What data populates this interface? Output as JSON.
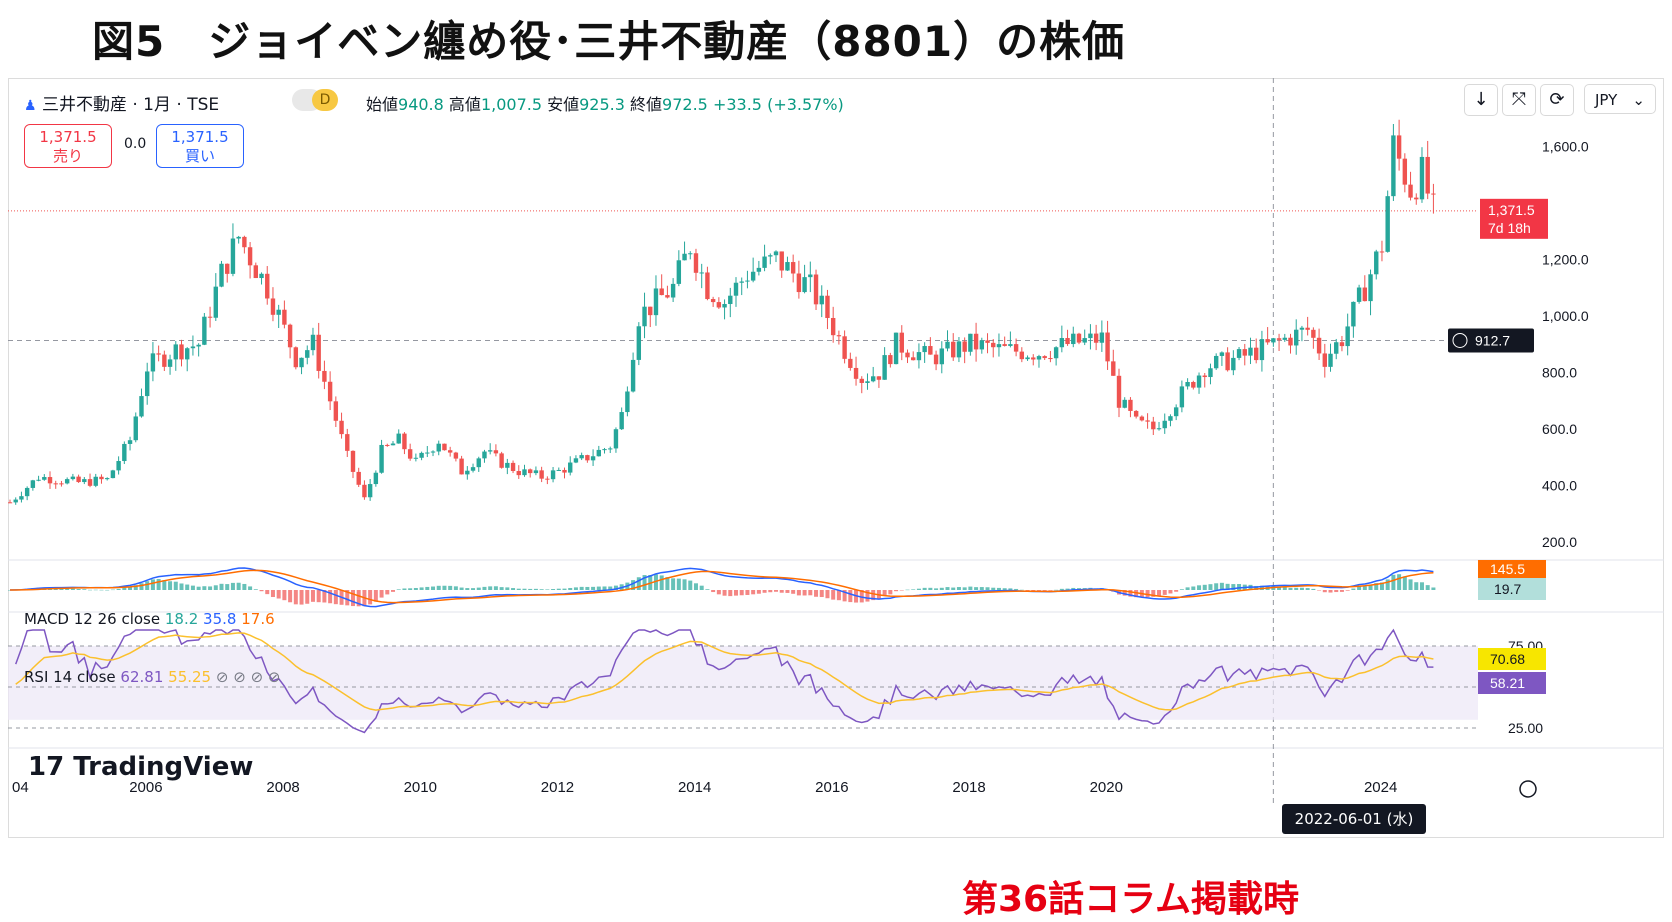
{
  "figure_title": "図5　ジョイベン纏め役･三井不動産（8801）の株価",
  "symbol_line": "三井不動産 · 1月 · TSE",
  "interval_badge": "D",
  "ohlc": {
    "open_label": "始値",
    "open": "940.8",
    "high_label": "高値",
    "high": "1,007.5",
    "low_label": "安値",
    "low": "925.3",
    "close_label": "終値",
    "close": "972.5",
    "change": "+33.5 (+3.57%)"
  },
  "sell": {
    "price": "1,371.5",
    "label": "売り"
  },
  "buy": {
    "price": "1,371.5",
    "label": "買い"
  },
  "spread": "0.0",
  "toolbar": {
    "download_icon": "↓",
    "collapse_icon": "⤧",
    "refresh_icon": "⟳"
  },
  "currency": "JPY",
  "macd": {
    "label": "MACD 12 26 close",
    "v1": "18.2",
    "v2": "35.8",
    "v3": "17.6",
    "badge_a": "145.5",
    "badge_b": "19.7"
  },
  "rsi": {
    "label": "RSI 14 close",
    "v1": "62.81",
    "v2": "55.25",
    "badge_a": "70.68",
    "badge_b": "58.21"
  },
  "price_badges": {
    "last": "1,371.5",
    "countdown": "7d 18h",
    "crosshair": "912.7"
  },
  "brand": "TradingView",
  "crosshair_date": "2022-06-01 (水)",
  "annotation": "第36話コラム掲載時",
  "colors": {
    "up": "#26a69a",
    "down": "#ef5350",
    "macd": "#2962ff",
    "signal": "#ff6d00",
    "rsi": "#7e57c2",
    "rsi_ma": "#fbc02d"
  },
  "chart_data": {
    "type": "candlestick",
    "title": "三井不動産 · 1月 · TSE",
    "x_ticks": [
      "04",
      "2006",
      "2008",
      "2010",
      "2012",
      "2014",
      "2016",
      "2018",
      "2020",
      "2022-06-01 (水)",
      "2024"
    ],
    "y_ticks": [
      "200.0",
      "400.0",
      "600.0",
      "800.0",
      "1,000.0",
      "1,200.0",
      "1,600.0"
    ],
    "ylim": [
      150,
      1700
    ],
    "price_path": [
      [
        "2004-01",
        340
      ],
      [
        "2004-06",
        430
      ],
      [
        "2005-01",
        410
      ],
      [
        "2005-06",
        420
      ],
      [
        "2005-10",
        560
      ],
      [
        "2006-01",
        820
      ],
      [
        "2006-06",
        880
      ],
      [
        "2006-10",
        900
      ],
      [
        "2007-02",
        1150
      ],
      [
        "2007-05",
        1280
      ],
      [
        "2007-10",
        1100
      ],
      [
        "2008-03",
        850
      ],
      [
        "2008-06",
        900
      ],
      [
        "2008-09",
        700
      ],
      [
        "2008-12",
        500
      ],
      [
        "2009-03",
        350
      ],
      [
        "2009-06",
        520
      ],
      [
        "2009-09",
        560
      ],
      [
        "2009-12",
        480
      ],
      [
        "2010-04",
        560
      ],
      [
        "2010-08",
        450
      ],
      [
        "2010-12",
        520
      ],
      [
        "2011-03",
        480
      ],
      [
        "2011-06",
        450
      ],
      [
        "2011-10",
        430
      ],
      [
        "2012-01",
        450
      ],
      [
        "2012-06",
        500
      ],
      [
        "2012-10",
        540
      ],
      [
        "2012-12",
        650
      ],
      [
        "2013-03",
        1000
      ],
      [
        "2013-06",
        1050
      ],
      [
        "2013-09",
        1100
      ],
      [
        "2013-12",
        1250
      ],
      [
        "2014-03",
        1100
      ],
      [
        "2014-06",
        1050
      ],
      [
        "2014-10",
        1150
      ],
      [
        "2015-03",
        1200
      ],
      [
        "2015-06",
        1150
      ],
      [
        "2015-09",
        1100
      ],
      [
        "2015-12",
        1000
      ],
      [
        "2016-03",
        880
      ],
      [
        "2016-06",
        780
      ],
      [
        "2016-09",
        800
      ],
      [
        "2016-12",
        900
      ],
      [
        "2017-06",
        850
      ],
      [
        "2018-01",
        900
      ],
      [
        "2018-06",
        880
      ],
      [
        "2019-01",
        870
      ],
      [
        "2019-06",
        900
      ],
      [
        "2019-12",
        920
      ],
      [
        "2020-03",
        700
      ],
      [
        "2020-06",
        620
      ],
      [
        "2020-09",
        600
      ],
      [
        "2021-01",
        700
      ],
      [
        "2021-06",
        820
      ],
      [
        "2021-12",
        850
      ],
      [
        "2022-06",
        900
      ],
      [
        "2022-12",
        950
      ],
      [
        "2023-03",
        850
      ],
      [
        "2023-06",
        920
      ],
      [
        "2023-10",
        1100
      ],
      [
        "2024-01",
        1250
      ],
      [
        "2024-03",
        1600
      ],
      [
        "2024-06",
        1450
      ],
      [
        "2024-08",
        1500
      ],
      [
        "2024-10",
        1371.5
      ]
    ],
    "rsi_levels": [
      "75.00",
      "50.00",
      "25.00"
    ]
  }
}
